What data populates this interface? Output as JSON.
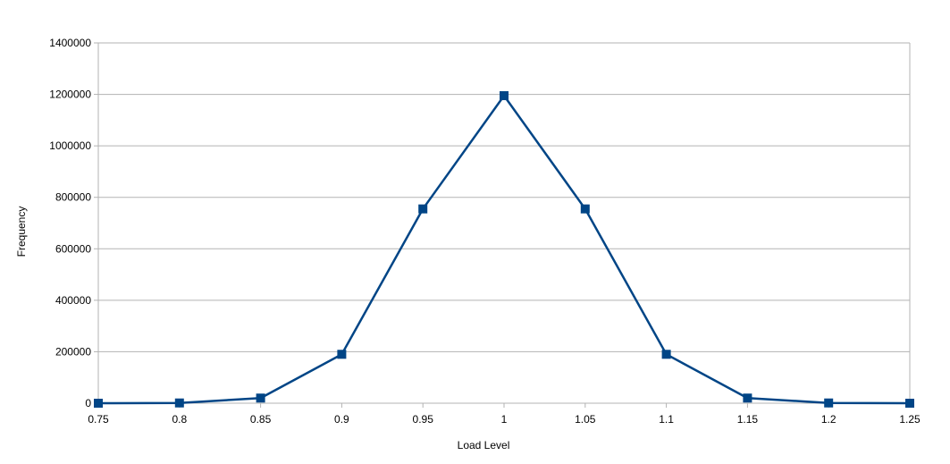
{
  "chart_data": {
    "type": "line",
    "x": [
      "0.75",
      "0.8",
      "0.85",
      "0.9",
      "0.95",
      "1",
      "1.05",
      "1.1",
      "1.15",
      "1.2",
      "1.25"
    ],
    "series": [
      {
        "values": [
          0,
          1000,
          20000,
          190000,
          755000,
          1195000,
          755000,
          190000,
          20000,
          1000,
          0
        ]
      }
    ],
    "xlabel": "Load Level",
    "ylabel": "Frequency",
    "ylim": [
      0,
      1400000
    ],
    "yticks": [
      "0",
      "200000",
      "400000",
      "600000",
      "800000",
      "1000000",
      "1200000",
      "1400000"
    ],
    "grid": true,
    "legend": "none",
    "colors": {
      "series": "#004586",
      "grid": "#b3b3b3",
      "axis": "#b3b3b3"
    }
  }
}
